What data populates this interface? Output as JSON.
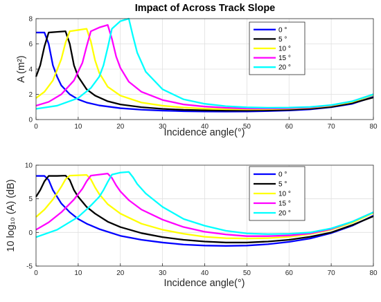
{
  "figure": {
    "title": "Impact of Across Track Slope"
  },
  "chart_data": [
    {
      "type": "line",
      "xlabel": "Incidence angle(°)",
      "ylabel": "A (m²)",
      "xlim": [
        0,
        80
      ],
      "ylim": [
        0,
        8
      ],
      "xticks": [
        "0",
        "10",
        "20",
        "30",
        "40",
        "50",
        "60",
        "70",
        "80"
      ],
      "yticks": [
        "0",
        "2",
        "4",
        "6",
        "8"
      ],
      "grid": true,
      "legend_position": "top-right",
      "series": [
        {
          "name": "0 °",
          "color": "#0000ff",
          "x": [
            0,
            2,
            3,
            4,
            5,
            6,
            8,
            10,
            12,
            15,
            20,
            25,
            30,
            35,
            40,
            45,
            50,
            55,
            60,
            65,
            70,
            75,
            80
          ],
          "y": [
            6.9,
            6.9,
            6.0,
            4.3,
            3.4,
            2.7,
            2.0,
            1.6,
            1.35,
            1.12,
            0.9,
            0.78,
            0.71,
            0.66,
            0.64,
            0.63,
            0.64,
            0.67,
            0.72,
            0.81,
            0.98,
            1.25,
            1.8
          ]
        },
        {
          "name": "5 °",
          "color": "#000000",
          "x": [
            0,
            1,
            2,
            3,
            5,
            7,
            8,
            9,
            10,
            12,
            14,
            17,
            20,
            25,
            30,
            35,
            40,
            45,
            50,
            55,
            60,
            65,
            70,
            75,
            80
          ],
          "y": [
            3.4,
            4.3,
            5.8,
            6.9,
            6.95,
            7.0,
            6.0,
            4.3,
            3.4,
            2.4,
            1.9,
            1.45,
            1.2,
            0.98,
            0.85,
            0.77,
            0.73,
            0.71,
            0.71,
            0.73,
            0.77,
            0.86,
            1.0,
            1.3,
            1.75
          ]
        },
        {
          "name": "10 °",
          "color": "#ffff00",
          "x": [
            0,
            2,
            4,
            6,
            7,
            8,
            10,
            12,
            13,
            14,
            15,
            17,
            20,
            25,
            30,
            35,
            40,
            45,
            50,
            55,
            60,
            65,
            70,
            75,
            80
          ],
          "y": [
            1.7,
            2.2,
            3.1,
            4.8,
            6.1,
            7.0,
            7.1,
            7.2,
            6.2,
            4.7,
            3.7,
            2.6,
            1.9,
            1.35,
            1.1,
            0.95,
            0.86,
            0.82,
            0.81,
            0.82,
            0.86,
            0.94,
            1.1,
            1.4,
            1.95
          ]
        },
        {
          "name": "15 °",
          "color": "#ff00ff",
          "x": [
            0,
            3,
            6,
            9,
            11,
            12,
            13,
            15,
            17,
            18,
            19,
            20,
            22,
            25,
            30,
            35,
            40,
            45,
            50,
            55,
            60,
            65,
            70,
            75,
            80
          ],
          "y": [
            1.1,
            1.4,
            2.0,
            3.1,
            4.5,
            5.8,
            7.0,
            7.3,
            7.5,
            6.4,
            5.0,
            4.1,
            3.0,
            2.2,
            1.55,
            1.2,
            1.03,
            0.93,
            0.88,
            0.88,
            0.9,
            0.97,
            1.13,
            1.45,
            2.0
          ]
        },
        {
          "name": "20 °",
          "color": "#00ffff",
          "x": [
            0,
            5,
            10,
            13,
            15,
            16,
            17,
            18,
            20,
            22,
            23,
            24,
            26,
            30,
            35,
            40,
            45,
            50,
            55,
            60,
            65,
            70,
            75,
            80
          ],
          "y": [
            0.85,
            1.1,
            1.7,
            2.5,
            3.4,
            4.3,
            5.7,
            7.2,
            7.8,
            8.0,
            6.6,
            5.3,
            3.8,
            2.4,
            1.6,
            1.25,
            1.06,
            0.97,
            0.94,
            0.95,
            1.0,
            1.15,
            1.45,
            2.0
          ]
        }
      ]
    },
    {
      "type": "line",
      "xlabel": "Incidence angle(°)",
      "ylabel": "10 log₁₀ (A) (dB)",
      "xlim": [
        0,
        80
      ],
      "ylim": [
        -5,
        10
      ],
      "xticks": [
        "0",
        "10",
        "20",
        "30",
        "40",
        "50",
        "60",
        "70",
        "80"
      ],
      "yticks": [
        "-5",
        "0",
        "5",
        "10"
      ],
      "grid": true,
      "legend_position": "top-right",
      "series": [
        {
          "name": "0 °",
          "color": "#0000ff",
          "x": [
            0,
            2,
            3,
            4,
            5,
            6,
            8,
            10,
            12,
            15,
            20,
            25,
            30,
            35,
            40,
            45,
            50,
            55,
            60,
            65,
            70,
            75,
            80
          ],
          "y": [
            8.4,
            8.4,
            7.8,
            6.3,
            5.3,
            4.3,
            3.0,
            2.0,
            1.3,
            0.5,
            -0.5,
            -1.1,
            -1.5,
            -1.8,
            -1.95,
            -2.0,
            -1.95,
            -1.75,
            -1.4,
            -0.9,
            -0.1,
            1.0,
            2.5
          ]
        },
        {
          "name": "5 °",
          "color": "#000000",
          "x": [
            0,
            1,
            2,
            3,
            5,
            7,
            8,
            9,
            10,
            12,
            14,
            17,
            20,
            25,
            30,
            35,
            40,
            45,
            50,
            55,
            60,
            65,
            70,
            75,
            80
          ],
          "y": [
            5.3,
            6.3,
            7.6,
            8.4,
            8.4,
            8.45,
            7.8,
            6.3,
            5.3,
            3.8,
            2.8,
            1.6,
            0.8,
            -0.1,
            -0.7,
            -1.1,
            -1.35,
            -1.5,
            -1.5,
            -1.35,
            -1.1,
            -0.65,
            0.0,
            1.1,
            2.4
          ]
        },
        {
          "name": "10 °",
          "color": "#ffff00",
          "x": [
            0,
            2,
            4,
            6,
            7,
            8,
            10,
            12,
            13,
            14,
            15,
            17,
            20,
            25,
            30,
            35,
            40,
            45,
            50,
            55,
            60,
            65,
            70,
            75,
            80
          ],
          "y": [
            2.3,
            3.4,
            4.9,
            6.8,
            7.9,
            8.45,
            8.5,
            8.55,
            7.9,
            6.7,
            5.7,
            4.2,
            2.8,
            1.3,
            0.4,
            -0.2,
            -0.65,
            -0.85,
            -0.9,
            -0.85,
            -0.65,
            -0.25,
            0.4,
            1.45,
            2.9
          ]
        },
        {
          "name": "15 °",
          "color": "#ff00ff",
          "x": [
            0,
            3,
            6,
            9,
            11,
            12,
            13,
            15,
            17,
            18,
            19,
            20,
            22,
            25,
            30,
            35,
            40,
            45,
            50,
            55,
            60,
            65,
            70,
            75,
            80
          ],
          "y": [
            0.4,
            1.5,
            3.0,
            4.9,
            6.5,
            7.6,
            8.45,
            8.6,
            8.75,
            8.1,
            7.0,
            6.1,
            4.8,
            3.4,
            1.9,
            0.8,
            0.1,
            -0.3,
            -0.55,
            -0.55,
            -0.45,
            -0.15,
            0.5,
            1.6,
            3.0
          ]
        },
        {
          "name": "20 °",
          "color": "#00ffff",
          "x": [
            0,
            5,
            10,
            13,
            15,
            16,
            17,
            18,
            20,
            22,
            23,
            24,
            26,
            30,
            35,
            40,
            45,
            50,
            55,
            60,
            65,
            70,
            75,
            80
          ],
          "y": [
            -0.7,
            0.4,
            2.3,
            4.0,
            5.3,
            6.3,
            7.5,
            8.6,
            8.9,
            9.0,
            8.2,
            7.2,
            5.8,
            3.8,
            2.0,
            1.0,
            0.25,
            -0.15,
            -0.25,
            -0.2,
            0.0,
            0.6,
            1.6,
            3.0
          ]
        }
      ]
    }
  ]
}
